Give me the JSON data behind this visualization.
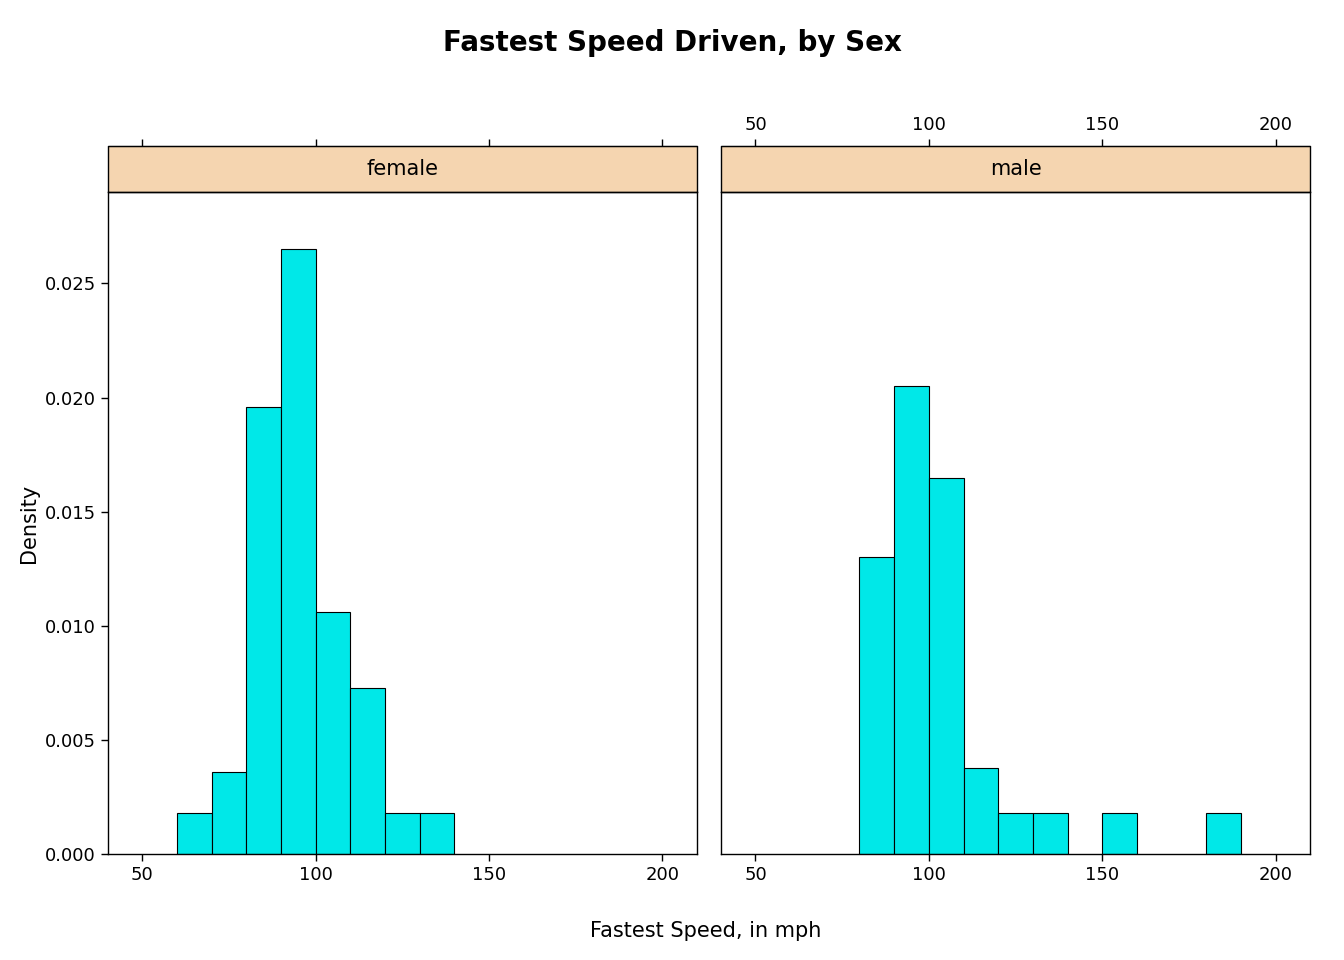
{
  "title": "Fastest Speed Driven, by Sex",
  "xlabel": "Fastest Speed, in mph",
  "ylabel": "Density",
  "strip_color": "#f5d5b0",
  "bar_color": "#00e8e8",
  "bar_edge_color": "#000000",
  "xlim": [
    40,
    210
  ],
  "ylim": [
    0.0,
    0.029
  ],
  "xticks": [
    50,
    100,
    150,
    200
  ],
  "yticks": [
    0.0,
    0.005,
    0.01,
    0.015,
    0.02,
    0.025
  ],
  "female_bar_lefts": [
    60,
    70,
    80,
    90,
    100,
    110,
    120,
    130
  ],
  "female_bar_heights": [
    0.0018,
    0.0036,
    0.0196,
    0.0265,
    0.0106,
    0.0073,
    0.0018,
    0.0018
  ],
  "male_bar_lefts": [
    80,
    90,
    100,
    110,
    120,
    130,
    150,
    180
  ],
  "male_bar_heights": [
    0.013,
    0.0205,
    0.0165,
    0.0038,
    0.0018,
    0.0018,
    0.0018,
    0.0018
  ],
  "bin_width": 10,
  "panel_labels": [
    "female",
    "male"
  ],
  "title_fontsize": 20,
  "label_fontsize": 15,
  "tick_fontsize": 13,
  "strip_fontsize": 15
}
